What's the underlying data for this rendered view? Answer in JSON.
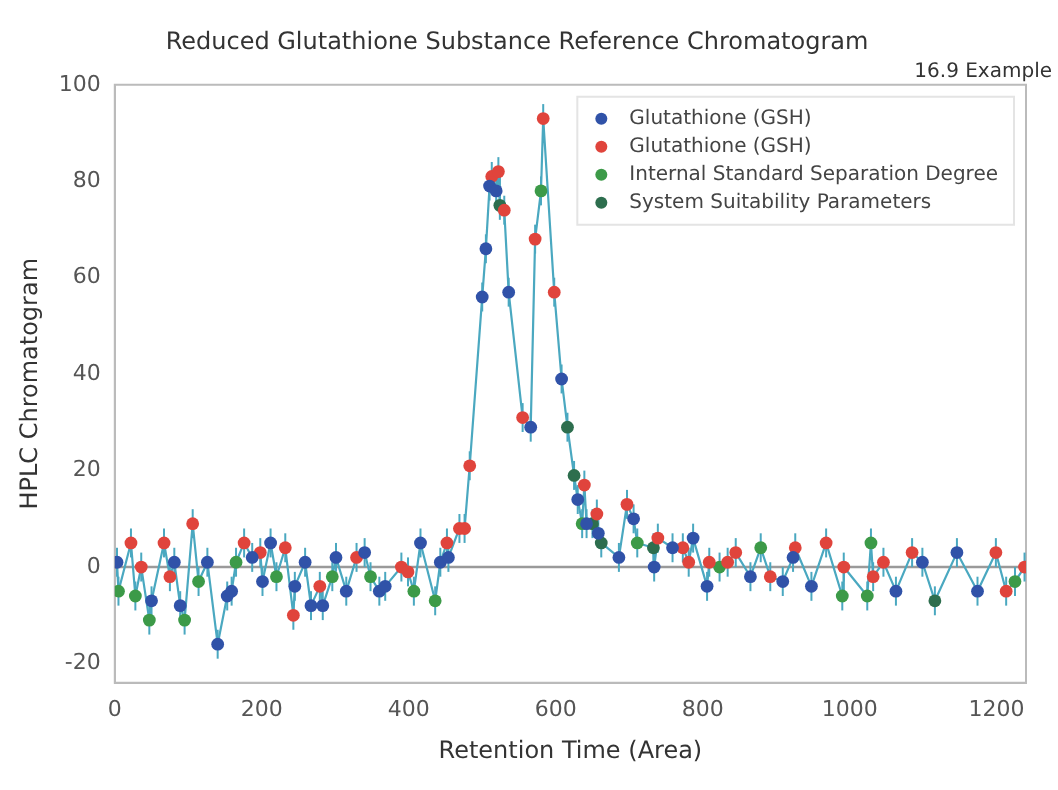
{
  "chart_data": {
    "type": "scatter",
    "title": "Reduced Glutathione Substance Reference Chromatogram",
    "xlabel": "Retention Time (Area)",
    "ylabel": "HPLC Chromatogram",
    "annotations": [
      "16.9 Example"
    ],
    "xlim": [
      0,
      1240
    ],
    "ylim": [
      -24,
      100
    ],
    "xticks": [
      0,
      200,
      400,
      600,
      800,
      1000,
      1200
    ],
    "yticks": [
      -20,
      0,
      20,
      40,
      60,
      80,
      100
    ],
    "grid": false,
    "legend": "top right",
    "marker": "circle",
    "ref_lines": [
      {
        "axis": "y",
        "value": 0,
        "color": "#9a9a9a"
      }
    ],
    "series": [
      {
        "type": "line",
        "color": "#4aa8c0",
        "marker": "none",
        "x": [
          3,
          5,
          22,
          28,
          36,
          47,
          50,
          67,
          75,
          81,
          89,
          95,
          106,
          114,
          126,
          140,
          153,
          159,
          165,
          176,
          187,
          198,
          201,
          212,
          220,
          232,
          243,
          245,
          259,
          267,
          279,
          283,
          296,
          301,
          315,
          329,
          340,
          348,
          360,
          368,
          390,
          399,
          407,
          416,
          436,
          443,
          452,
          454,
          469,
          476,
          483,
          500,
          505,
          510,
          513,
          519,
          522,
          524,
          530,
          536,
          555,
          566,
          572,
          580,
          583,
          598,
          608,
          616,
          625,
          630,
          636,
          639,
          642,
          650,
          656,
          658,
          662,
          686,
          697,
          706,
          711,
          733,
          734,
          739,
          759,
          773,
          781,
          787,
          806,
          809,
          823,
          834,
          845,
          865,
          879,
          892,
          909,
          923,
          926,
          948,
          968,
          990,
          992,
          1024,
          1029,
          1032,
          1046,
          1063,
          1085,
          1099,
          1116,
          1146,
          1174,
          1199,
          1213,
          1225,
          1238
        ],
        "values": [
          1,
          -5,
          5,
          -6,
          0,
          -11,
          -7,
          5,
          -2,
          1,
          -8,
          -11,
          9,
          -3,
          1,
          -16,
          -6,
          -5,
          1,
          5,
          2,
          3,
          -3,
          5,
          -2,
          4,
          -10,
          -4,
          1,
          -8,
          -4,
          -8,
          -2,
          2,
          -5,
          2,
          3,
          -2,
          -5,
          -4,
          0,
          -1,
          -5,
          5,
          -7,
          1,
          5,
          2,
          8,
          8,
          21,
          56,
          66,
          79,
          81,
          78,
          82,
          75,
          74,
          57,
          31,
          29,
          68,
          78,
          93,
          57,
          39,
          29,
          19,
          14,
          9,
          17,
          9,
          9,
          11,
          7,
          5,
          2,
          13,
          10,
          5,
          4,
          0,
          6,
          4,
          4,
          1,
          6,
          -4,
          1,
          0,
          1,
          3,
          -2,
          4,
          -2,
          -3,
          2,
          4,
          -4,
          5,
          -6,
          0,
          -6,
          5,
          -2,
          1,
          -5,
          3,
          1,
          -7,
          3,
          -5,
          3,
          -5,
          -3,
          0
        ],
        "errors": [
          3,
          3,
          3,
          3,
          3,
          3,
          3,
          3,
          3,
          3,
          3,
          3,
          3,
          3,
          3,
          3,
          3,
          3,
          3,
          3,
          3,
          3,
          3,
          3,
          3,
          3,
          3,
          3,
          3,
          3,
          3,
          3,
          3,
          3,
          3,
          3,
          3,
          3,
          3,
          3,
          3,
          3,
          3,
          3,
          3,
          3,
          3,
          3,
          3,
          3,
          3,
          3,
          3,
          3,
          3,
          3,
          3,
          3,
          3,
          3,
          3,
          3,
          3,
          3,
          3,
          3,
          3,
          3,
          3,
          3,
          3,
          3,
          3,
          3,
          3,
          3,
          3,
          3,
          3,
          3,
          3,
          3,
          3,
          3,
          3,
          3,
          3,
          3,
          3,
          3,
          3,
          3,
          3,
          3,
          3,
          3,
          3,
          3,
          3,
          3,
          3,
          3,
          3,
          3,
          3,
          3,
          3,
          3,
          3,
          3,
          3,
          3,
          3,
          3,
          3,
          3,
          3
        ]
      },
      {
        "name": "Glutathione (GSH)",
        "color": "#3052a8",
        "x": [
          3,
          50,
          81,
          89,
          126,
          140,
          153,
          159,
          187,
          201,
          212,
          245,
          259,
          267,
          283,
          301,
          315,
          340,
          360,
          368,
          416,
          443,
          454,
          500,
          505,
          510,
          519,
          536,
          566,
          608,
          630,
          642,
          658,
          686,
          706,
          734,
          759,
          787,
          806,
          865,
          909,
          923,
          948,
          1063,
          1099,
          1146,
          1174
        ],
        "values": [
          1,
          -7,
          1,
          -8,
          1,
          -16,
          -6,
          -5,
          2,
          -3,
          5,
          -4,
          1,
          -8,
          -8,
          2,
          -5,
          3,
          -5,
          -4,
          5,
          1,
          2,
          56,
          66,
          79,
          78,
          57,
          29,
          39,
          14,
          9,
          7,
          2,
          10,
          0,
          4,
          6,
          -4,
          -2,
          -3,
          2,
          -4,
          -5,
          1,
          3,
          -5
        ]
      },
      {
        "name": "Glutathione (GSH)",
        "color": "#e0443c",
        "x": [
          22,
          36,
          67,
          75,
          106,
          176,
          198,
          232,
          243,
          279,
          329,
          390,
          399,
          452,
          469,
          476,
          483,
          513,
          522,
          530,
          555,
          572,
          583,
          598,
          639,
          656,
          697,
          739,
          773,
          781,
          809,
          834,
          845,
          892,
          926,
          968,
          992,
          1032,
          1046,
          1085,
          1199,
          1213,
          1238
        ],
        "values": [
          5,
          0,
          5,
          -2,
          9,
          5,
          3,
          4,
          -10,
          -4,
          2,
          0,
          -1,
          5,
          8,
          8,
          21,
          81,
          82,
          74,
          31,
          68,
          93,
          57,
          17,
          11,
          13,
          6,
          4,
          1,
          1,
          1,
          3,
          -2,
          4,
          5,
          0,
          -2,
          1,
          3,
          3,
          -5,
          0
        ]
      },
      {
        "name": "Internal Standard Separation Degree",
        "color": "#3c9a48",
        "x": [
          5,
          28,
          47,
          95,
          114,
          165,
          220,
          296,
          348,
          407,
          436,
          580,
          636,
          711,
          823,
          879,
          990,
          1024,
          1029,
          1225
        ],
        "values": [
          -5,
          -6,
          -11,
          -11,
          -3,
          1,
          -2,
          -2,
          -2,
          -5,
          -7,
          78,
          9,
          5,
          0,
          4,
          -6,
          -6,
          5,
          -3
        ]
      },
      {
        "name": "System Suitability Parameters",
        "color": "#2d6e4e",
        "x": [
          524,
          616,
          625,
          650,
          662,
          733,
          1116
        ],
        "values": [
          75,
          29,
          19,
          9,
          5,
          4,
          -7
        ]
      }
    ]
  }
}
